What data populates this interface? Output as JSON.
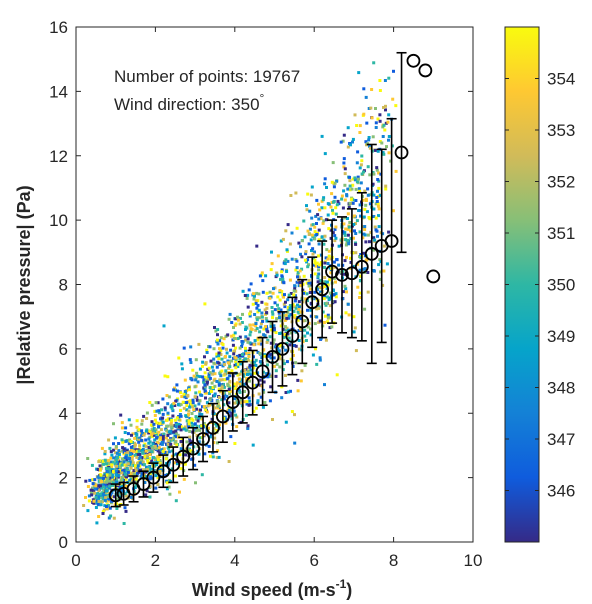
{
  "chart_data": {
    "type": "scatter",
    "xlabel": "Wind speed (m-s",
    "xlabel_sup": "-1",
    "xlabel_close": ")",
    "ylabel": "|Relative pressure| (Pa)",
    "xlim": [
      0,
      10
    ],
    "ylim": [
      0,
      16
    ],
    "x_ticks": [
      0,
      2,
      4,
      6,
      8,
      10
    ],
    "y_ticks": [
      0,
      2,
      4,
      6,
      8,
      10,
      12,
      14,
      16
    ],
    "grid": false,
    "annotations": {
      "points_text": "Number of points: 19767",
      "direction_text": "Wind direction: 350",
      "degree_symbol": "°"
    },
    "colorbar": {
      "colormap": "parula",
      "range": [
        345,
        355
      ],
      "ticks": [
        346,
        347,
        348,
        349,
        350,
        351,
        352,
        353,
        354
      ],
      "colors": [
        "#352a87",
        "#0f5cdd",
        "#1481d6",
        "#06a4ca",
        "#2eb7a4",
        "#87bf77",
        "#d1bb59",
        "#fec832",
        "#f9fb0e"
      ]
    },
    "scatter_point_count": 19767,
    "binned_means": [
      {
        "x": 1.0,
        "y": 1.45,
        "err": 0.35
      },
      {
        "x": 1.2,
        "y": 1.5,
        "err": 0.35
      },
      {
        "x": 1.45,
        "y": 1.65,
        "err": 0.4
      },
      {
        "x": 1.7,
        "y": 1.8,
        "err": 0.4
      },
      {
        "x": 1.95,
        "y": 2.0,
        "err": 0.45
      },
      {
        "x": 2.2,
        "y": 2.2,
        "err": 0.5
      },
      {
        "x": 2.45,
        "y": 2.4,
        "err": 0.55
      },
      {
        "x": 2.7,
        "y": 2.65,
        "err": 0.6
      },
      {
        "x": 2.95,
        "y": 2.9,
        "err": 0.65
      },
      {
        "x": 3.2,
        "y": 3.2,
        "err": 0.7
      },
      {
        "x": 3.45,
        "y": 3.55,
        "err": 0.75
      },
      {
        "x": 3.7,
        "y": 3.9,
        "err": 0.8
      },
      {
        "x": 3.95,
        "y": 4.35,
        "err": 0.9
      },
      {
        "x": 4.2,
        "y": 4.65,
        "err": 0.95
      },
      {
        "x": 4.45,
        "y": 4.95,
        "err": 1.0
      },
      {
        "x": 4.7,
        "y": 5.3,
        "err": 1.05
      },
      {
        "x": 4.95,
        "y": 5.75,
        "err": 1.1
      },
      {
        "x": 5.2,
        "y": 6.0,
        "err": 1.15
      },
      {
        "x": 5.45,
        "y": 6.4,
        "err": 1.2
      },
      {
        "x": 5.7,
        "y": 6.85,
        "err": 1.3
      },
      {
        "x": 5.95,
        "y": 7.45,
        "err": 1.4
      },
      {
        "x": 6.2,
        "y": 7.85,
        "err": 1.5
      },
      {
        "x": 6.45,
        "y": 8.4,
        "err": 1.6
      },
      {
        "x": 6.7,
        "y": 8.3,
        "err": 1.8
      },
      {
        "x": 6.95,
        "y": 8.35,
        "err": 2.0
      },
      {
        "x": 7.2,
        "y": 8.55,
        "err": 2.3
      },
      {
        "x": 7.45,
        "y": 8.95,
        "err": 3.4
      },
      {
        "x": 7.7,
        "y": 9.2,
        "err": 3.0
      },
      {
        "x": 7.95,
        "y": 9.35,
        "err": 3.8
      },
      {
        "x": 8.2,
        "y": 12.1,
        "err": 3.1
      },
      {
        "x": 8.5,
        "y": 14.95,
        "err": 0
      },
      {
        "x": 8.8,
        "y": 14.65,
        "err": 0
      },
      {
        "x": 9.0,
        "y": 8.25,
        "err": 0
      }
    ]
  }
}
